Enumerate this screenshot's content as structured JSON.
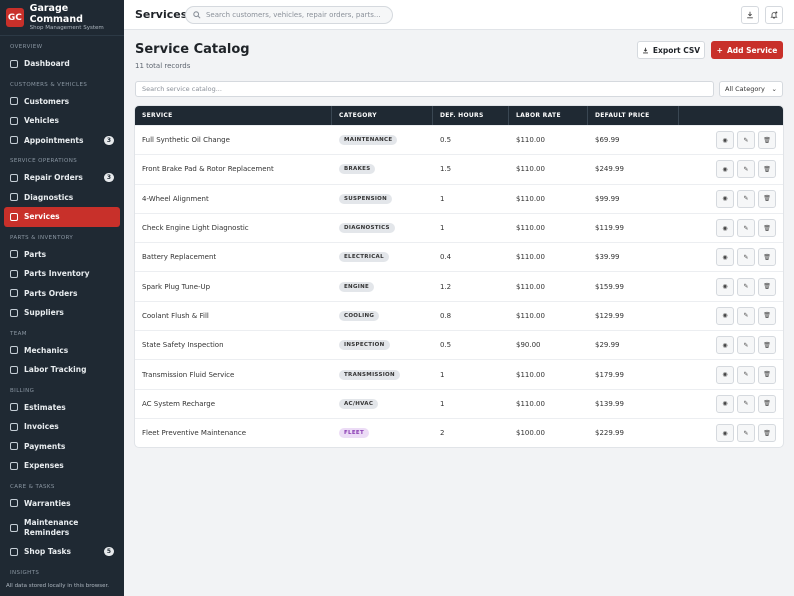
{
  "brand": {
    "initials": "GC",
    "name": "Garage Command",
    "subtitle": "Shop Management System"
  },
  "sidebar": {
    "sections": [
      {
        "title": "OVERVIEW",
        "items": [
          {
            "label": "Dashboard",
            "icon": "dashboard-icon"
          }
        ]
      },
      {
        "title": "CUSTOMERS & VEHICLES",
        "items": [
          {
            "label": "Customers",
            "icon": "users-icon"
          },
          {
            "label": "Vehicles",
            "icon": "car-icon"
          },
          {
            "label": "Appointments",
            "icon": "calendar-icon",
            "badge": "3"
          }
        ]
      },
      {
        "title": "SERVICE OPERATIONS",
        "items": [
          {
            "label": "Repair Orders",
            "icon": "clipboard-icon",
            "badge": "3"
          },
          {
            "label": "Diagnostics",
            "icon": "stethoscope-icon"
          },
          {
            "label": "Services",
            "icon": "wrench-icon",
            "active": true
          }
        ]
      },
      {
        "title": "PARTS & INVENTORY",
        "items": [
          {
            "label": "Parts",
            "icon": "box-icon"
          },
          {
            "label": "Parts Inventory",
            "icon": "layers-icon"
          },
          {
            "label": "Parts Orders",
            "icon": "truck-icon"
          },
          {
            "label": "Suppliers",
            "icon": "building-icon"
          }
        ]
      },
      {
        "title": "TEAM",
        "items": [
          {
            "label": "Mechanics",
            "icon": "person-icon"
          },
          {
            "label": "Labor Tracking",
            "icon": "clock-icon"
          }
        ]
      },
      {
        "title": "BILLING",
        "items": [
          {
            "label": "Estimates",
            "icon": "calculator-icon"
          },
          {
            "label": "Invoices",
            "icon": "invoice-icon"
          },
          {
            "label": "Payments",
            "icon": "card-icon"
          },
          {
            "label": "Expenses",
            "icon": "dollar-icon"
          }
        ]
      },
      {
        "title": "CARE & TASKS",
        "items": [
          {
            "label": "Warranties",
            "icon": "shield-icon"
          },
          {
            "label": "Maintenance Reminders",
            "icon": "bell-icon"
          },
          {
            "label": "Shop Tasks",
            "icon": "checklist-icon",
            "badge": "5"
          }
        ]
      },
      {
        "title": "INSIGHTS",
        "items": []
      }
    ],
    "footer": "All data stored locally in this browser."
  },
  "topbar": {
    "title": "Services",
    "search_placeholder": "Search customers, vehicles, repair orders, parts..."
  },
  "page": {
    "title": "Service Catalog",
    "subtitle": "11 total records",
    "export_label": "Export CSV",
    "add_label": "Add Service"
  },
  "filters": {
    "search_placeholder": "Search service catalog...",
    "category_value": "All Category"
  },
  "table": {
    "headers": [
      "SERVICE",
      "CATEGORY",
      "DEF. HOURS",
      "LABOR RATE",
      "DEFAULT PRICE"
    ],
    "rows": [
      {
        "service": "Full Synthetic Oil Change",
        "category": "MAINTENANCE",
        "hours": "0.5",
        "rate": "$110.00",
        "price": "$69.99"
      },
      {
        "service": "Front Brake Pad & Rotor Replacement",
        "category": "BRAKES",
        "hours": "1.5",
        "rate": "$110.00",
        "price": "$249.99"
      },
      {
        "service": "4-Wheel Alignment",
        "category": "SUSPENSION",
        "hours": "1",
        "rate": "$110.00",
        "price": "$99.99"
      },
      {
        "service": "Check Engine Light Diagnostic",
        "category": "DIAGNOSTICS",
        "hours": "1",
        "rate": "$110.00",
        "price": "$119.99"
      },
      {
        "service": "Battery Replacement",
        "category": "ELECTRICAL",
        "hours": "0.4",
        "rate": "$110.00",
        "price": "$39.99"
      },
      {
        "service": "Spark Plug Tune-Up",
        "category": "ENGINE",
        "hours": "1.2",
        "rate": "$110.00",
        "price": "$159.99"
      },
      {
        "service": "Coolant Flush & Fill",
        "category": "COOLING",
        "hours": "0.8",
        "rate": "$110.00",
        "price": "$129.99"
      },
      {
        "service": "State Safety Inspection",
        "category": "INSPECTION",
        "hours": "0.5",
        "rate": "$90.00",
        "price": "$29.99"
      },
      {
        "service": "Transmission Fluid Service",
        "category": "TRANSMISSION",
        "hours": "1",
        "rate": "$110.00",
        "price": "$179.99"
      },
      {
        "service": "AC System Recharge",
        "category": "AC/HVAC",
        "hours": "1",
        "rate": "$110.00",
        "price": "$139.99"
      },
      {
        "service": "Fleet Preventive Maintenance",
        "category": "FLEET",
        "hours": "2",
        "rate": "$100.00",
        "price": "$229.99"
      }
    ]
  },
  "colors": {
    "accent": "#c8302a",
    "sidebar": "#1f2933",
    "fleet_pill": "#ecdcf6"
  }
}
